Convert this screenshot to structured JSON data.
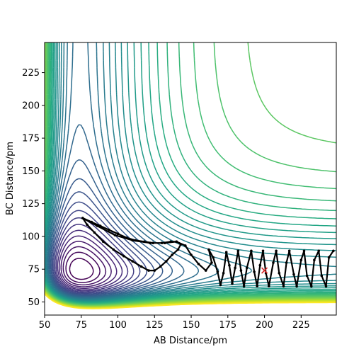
{
  "chart_data": {
    "type": "contour",
    "xlabel": "AB Distance/pm",
    "ylabel": "BC Distance/pm",
    "xlim": [
      50,
      249
    ],
    "ylim": [
      40,
      248
    ],
    "x_ticks": [
      50,
      75,
      100,
      125,
      150,
      175,
      200,
      225
    ],
    "y_ticks": [
      50,
      75,
      100,
      125,
      150,
      175,
      200,
      225
    ],
    "x_tick_labels": [
      "50",
      "75",
      "100",
      "125",
      "150",
      "175",
      "200",
      "225"
    ],
    "y_tick_labels": [
      "50",
      "75",
      "100",
      "125",
      "150",
      "175",
      "200",
      "225"
    ],
    "grid": false,
    "colormap": "viridis",
    "contour_level_count": 40,
    "trajectory": {
      "color": "#000000",
      "points": [
        [
          76,
          114
        ],
        [
          82,
          111
        ],
        [
          88,
          108
        ],
        [
          94,
          105
        ],
        [
          100,
          102
        ],
        [
          106,
          99
        ],
        [
          112,
          97
        ],
        [
          118,
          96
        ],
        [
          124,
          95
        ],
        [
          130,
          95
        ],
        [
          136,
          96
        ],
        [
          140,
          96
        ],
        [
          143,
          94
        ],
        [
          141,
          90
        ],
        [
          137,
          86
        ],
        [
          133,
          81
        ],
        [
          129,
          77
        ],
        [
          125,
          74
        ],
        [
          121,
          74
        ],
        [
          116,
          77
        ],
        [
          110,
          81
        ],
        [
          104,
          85
        ],
        [
          97,
          90
        ],
        [
          90,
          96
        ],
        [
          84,
          103
        ],
        [
          79,
          109
        ],
        [
          76,
          114
        ],
        [
          86,
          108
        ],
        [
          98,
          101
        ],
        [
          110,
          97
        ],
        [
          122,
          95
        ],
        [
          132,
          95
        ],
        [
          140,
          96
        ],
        [
          146,
          93
        ],
        [
          150,
          86
        ],
        [
          155,
          79
        ],
        [
          160,
          74
        ],
        [
          164,
          80
        ],
        [
          162,
          90
        ],
        [
          165,
          84
        ],
        [
          168,
          73
        ],
        [
          170,
          63
        ],
        [
          172,
          72
        ],
        [
          174,
          88
        ],
        [
          176,
          78
        ],
        [
          178,
          64
        ],
        [
          180,
          76
        ],
        [
          182,
          89
        ],
        [
          184,
          74
        ],
        [
          186,
          62
        ],
        [
          188,
          76
        ],
        [
          191,
          89
        ],
        [
          193,
          73
        ],
        [
          195,
          62
        ],
        [
          197,
          78
        ],
        [
          199,
          89
        ],
        [
          201,
          72
        ],
        [
          203,
          62
        ],
        [
          206,
          80
        ],
        [
          208,
          89
        ],
        [
          210,
          72
        ],
        [
          213,
          62
        ],
        [
          215,
          80
        ],
        [
          217,
          89
        ],
        [
          220,
          71
        ],
        [
          222,
          62
        ],
        [
          225,
          82
        ],
        [
          227,
          89
        ],
        [
          229,
          70
        ],
        [
          232,
          62
        ],
        [
          234,
          82
        ],
        [
          237,
          89
        ],
        [
          239,
          70
        ],
        [
          242,
          62
        ],
        [
          244,
          84
        ],
        [
          247,
          89
        ]
      ]
    },
    "marker": {
      "x": 200,
      "y": 74,
      "symbol": "x",
      "color": "#d62728"
    }
  }
}
